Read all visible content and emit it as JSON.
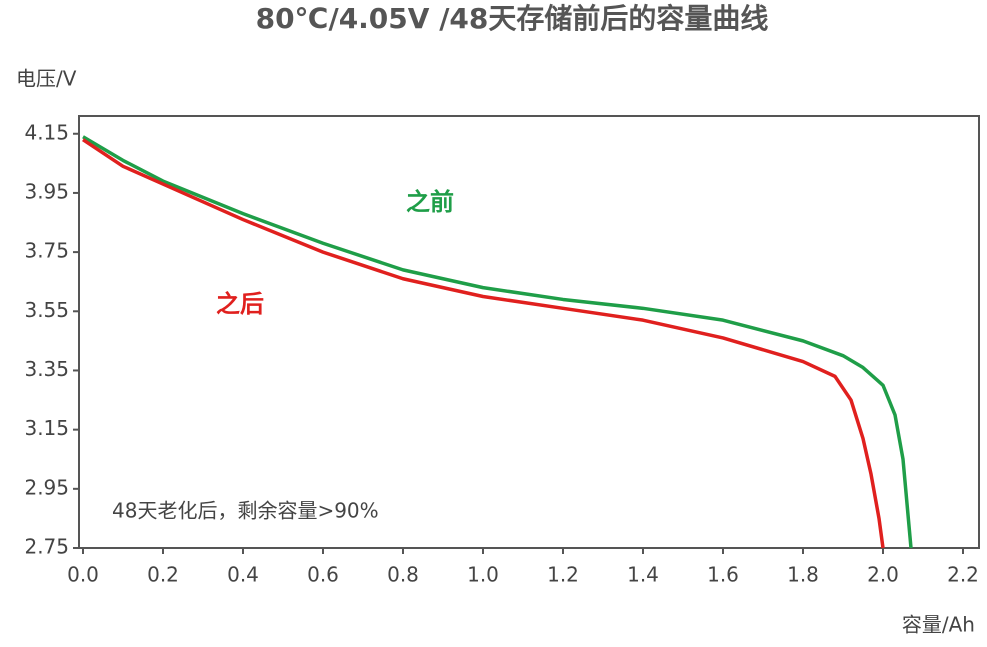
{
  "chart_data": {
    "type": "line",
    "title": "80℃/4.05V /48天存储前后的容量曲线",
    "ylabel": "电压/V",
    "xlabel": "容量/Ah",
    "annotation": "48天老化后，剩余容量>90%",
    "xlim": [
      -0.01,
      2.24
    ],
    "ylim": [
      2.75,
      4.21
    ],
    "xticks": [
      {
        "value": 0,
        "label": "0.0"
      },
      0.2,
      0.4,
      0.6,
      0.8,
      {
        "value": 1,
        "label": "1.0"
      },
      1.2,
      1.4,
      1.6,
      1.8,
      {
        "value": 2,
        "label": "2.0"
      },
      2.2
    ],
    "yticks": [
      4.15,
      3.95,
      3.75,
      3.55,
      3.35,
      3.15,
      2.95,
      2.75
    ],
    "grid": false,
    "series": [
      {
        "name": "之前",
        "color": "#1f9e48",
        "x": [
          0,
          0.1,
          0.2,
          0.4,
          0.6,
          0.8,
          1.0,
          1.2,
          1.4,
          1.6,
          1.8,
          1.9,
          1.95,
          2.0,
          2.03,
          2.05,
          2.06,
          2.07
        ],
        "values": [
          4.14,
          4.06,
          3.99,
          3.88,
          3.78,
          3.69,
          3.63,
          3.59,
          3.56,
          3.52,
          3.45,
          3.4,
          3.36,
          3.3,
          3.2,
          3.05,
          2.9,
          2.75
        ]
      },
      {
        "name": "之后",
        "color": "#e0201e",
        "x": [
          0,
          0.1,
          0.2,
          0.4,
          0.6,
          0.8,
          1.0,
          1.2,
          1.4,
          1.6,
          1.8,
          1.88,
          1.92,
          1.95,
          1.97,
          1.99,
          2.0
        ],
        "values": [
          4.13,
          4.04,
          3.98,
          3.86,
          3.75,
          3.66,
          3.6,
          3.56,
          3.52,
          3.46,
          3.38,
          3.33,
          3.25,
          3.12,
          3.0,
          2.85,
          2.75
        ]
      }
    ]
  }
}
